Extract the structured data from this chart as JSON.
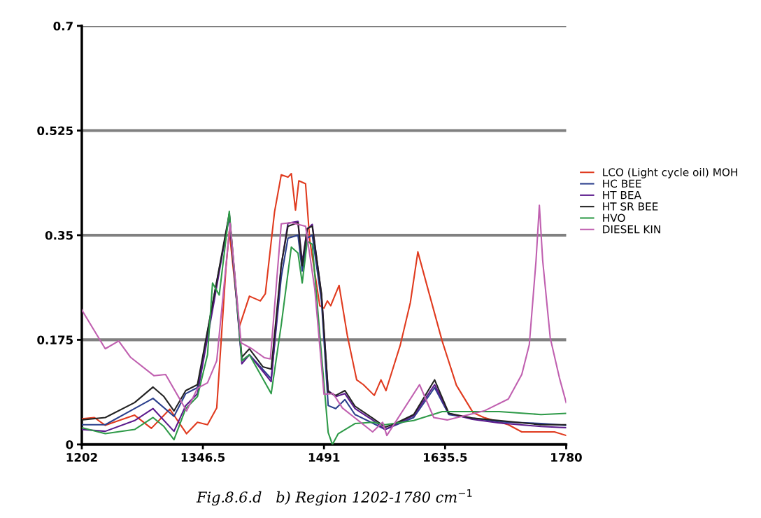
{
  "chart_data": {
    "type": "line",
    "xlim": [
      1202,
      1780
    ],
    "ylim": [
      0,
      0.7
    ],
    "xticks": [
      1202,
      1346.5,
      1491,
      1635.5,
      1780
    ],
    "yticks": [
      0,
      0.175,
      0.35,
      0.525,
      0.7
    ],
    "grid": "y",
    "legend": "right",
    "marker": "none",
    "line_style": "solid",
    "annotations": [
      "Fig.8.6.d   b) Region 1202-1780 cm$^{−1}$"
    ],
    "series": [
      {
        "name": "LCO (Light cycle oil) MOH",
        "color": "#e03a1e",
        "x": [
          1202,
          1217,
          1230,
          1265,
          1285,
          1307,
          1327,
          1340,
          1352,
          1363,
          1374,
          1378,
          1390,
          1402,
          1415,
          1421,
          1432,
          1440,
          1448,
          1452,
          1457,
          1461,
          1469,
          1474,
          1486,
          1491,
          1495,
          1499,
          1509,
          1519,
          1530,
          1538,
          1551,
          1559,
          1565,
          1582,
          1594,
          1603,
          1616,
          1632,
          1649,
          1669,
          1682,
          1711,
          1727,
          1766,
          1780
        ],
        "values": [
          0.043,
          0.045,
          0.032,
          0.049,
          0.027,
          0.059,
          0.018,
          0.037,
          0.033,
          0.061,
          0.295,
          0.357,
          0.197,
          0.248,
          0.24,
          0.252,
          0.389,
          0.451,
          0.447,
          0.453,
          0.392,
          0.441,
          0.436,
          0.342,
          0.232,
          0.228,
          0.24,
          0.232,
          0.266,
          0.181,
          0.108,
          0.1,
          0.082,
          0.108,
          0.09,
          0.166,
          0.237,
          0.322,
          0.255,
          0.173,
          0.099,
          0.053,
          0.045,
          0.033,
          0.021,
          0.021,
          0.015
        ]
      },
      {
        "name": "HC BEE",
        "color": "#2b3f8c",
        "x": [
          1202,
          1230,
          1265,
          1287,
          1312,
          1326,
          1340,
          1360,
          1378,
          1393,
          1402,
          1428,
          1440,
          1448,
          1460,
          1465,
          1471,
          1477,
          1488,
          1496,
          1505,
          1516,
          1528,
          1550,
          1564,
          1598,
          1623,
          1640,
          1668,
          1700,
          1750,
          1780
        ],
        "values": [
          0.033,
          0.033,
          0.06,
          0.077,
          0.047,
          0.085,
          0.095,
          0.25,
          0.38,
          0.14,
          0.15,
          0.11,
          0.28,
          0.345,
          0.35,
          0.29,
          0.345,
          0.35,
          0.24,
          0.065,
          0.06,
          0.075,
          0.05,
          0.035,
          0.025,
          0.045,
          0.095,
          0.05,
          0.044,
          0.038,
          0.035,
          0.032
        ]
      },
      {
        "name": "HT BEA",
        "color": "#5b1a8c",
        "x": [
          1202,
          1230,
          1265,
          1287,
          1312,
          1326,
          1340,
          1360,
          1378,
          1393,
          1402,
          1428,
          1440,
          1448,
          1460,
          1465,
          1471,
          1477,
          1488,
          1496,
          1505,
          1516,
          1528,
          1550,
          1564,
          1598,
          1623,
          1640,
          1668,
          1700,
          1750,
          1780
        ],
        "values": [
          0.025,
          0.022,
          0.04,
          0.06,
          0.022,
          0.065,
          0.085,
          0.24,
          0.385,
          0.135,
          0.15,
          0.105,
          0.3,
          0.37,
          0.373,
          0.305,
          0.36,
          0.368,
          0.25,
          0.09,
          0.08,
          0.085,
          0.06,
          0.04,
          0.025,
          0.048,
          0.1,
          0.052,
          0.042,
          0.036,
          0.03,
          0.028
        ]
      },
      {
        "name": "HT SR BEE",
        "color": "#222222",
        "x": [
          1202,
          1230,
          1265,
          1287,
          1300,
          1312,
          1326,
          1340,
          1360,
          1378,
          1393,
          1402,
          1418,
          1428,
          1440,
          1448,
          1460,
          1465,
          1471,
          1477,
          1488,
          1496,
          1505,
          1516,
          1528,
          1550,
          1564,
          1576,
          1598,
          1623,
          1640,
          1668,
          1700,
          1750,
          1780
        ],
        "values": [
          0.041,
          0.045,
          0.07,
          0.096,
          0.08,
          0.056,
          0.09,
          0.1,
          0.25,
          0.386,
          0.146,
          0.16,
          0.13,
          0.126,
          0.3,
          0.365,
          0.371,
          0.299,
          0.361,
          0.365,
          0.252,
          0.088,
          0.082,
          0.09,
          0.064,
          0.043,
          0.029,
          0.035,
          0.05,
          0.108,
          0.052,
          0.044,
          0.04,
          0.033,
          0.033
        ]
      },
      {
        "name": "HVO",
        "color": "#2e9a48",
        "x": [
          1202,
          1230,
          1265,
          1287,
          1300,
          1312,
          1326,
          1340,
          1352,
          1358,
          1366,
          1378,
          1393,
          1402,
          1428,
          1440,
          1452,
          1460,
          1465,
          1471,
          1477,
          1488,
          1496,
          1501,
          1508,
          1528,
          1550,
          1564,
          1598,
          1632,
          1660,
          1700,
          1750,
          1780
        ],
        "values": [
          0.028,
          0.018,
          0.025,
          0.045,
          0.03,
          0.008,
          0.06,
          0.08,
          0.15,
          0.27,
          0.25,
          0.39,
          0.14,
          0.15,
          0.085,
          0.2,
          0.33,
          0.32,
          0.27,
          0.34,
          0.335,
          0.15,
          0.02,
          0,
          0.018,
          0.035,
          0.037,
          0.033,
          0.04,
          0.055,
          0.055,
          0.055,
          0.05,
          0.052
        ]
      },
      {
        "name": "DIESEL KIN",
        "color": "#c060b0",
        "x": [
          1202,
          1230,
          1246,
          1260,
          1288,
          1302,
          1327,
          1340,
          1352,
          1363,
          1379,
          1392,
          1405,
          1420,
          1427,
          1440,
          1452,
          1469,
          1480,
          1491,
          1502,
          1513,
          1549,
          1561,
          1566,
          1605,
          1622,
          1638,
          1682,
          1711,
          1727,
          1736,
          1744,
          1748,
          1752,
          1761,
          1772,
          1780
        ],
        "values": [
          0.225,
          0.16,
          0.173,
          0.146,
          0.115,
          0.117,
          0.056,
          0.094,
          0.103,
          0.14,
          0.37,
          0.17,
          0.16,
          0.145,
          0.143,
          0.369,
          0.371,
          0.365,
          0.26,
          0.084,
          0.085,
          0.061,
          0.021,
          0.037,
          0.015,
          0.1,
          0.045,
          0.041,
          0.056,
          0.076,
          0.117,
          0.167,
          0.307,
          0.4,
          0.307,
          0.178,
          0.111,
          0.07
        ]
      }
    ]
  }
}
